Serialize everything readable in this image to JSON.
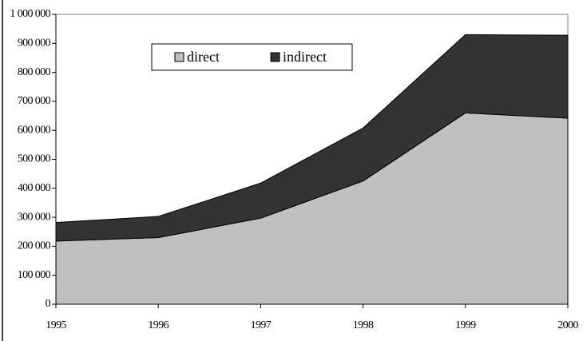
{
  "chart_data": {
    "type": "area",
    "stacked": true,
    "x": [
      1995,
      1996,
      1997,
      1998,
      1999,
      2000
    ],
    "series": [
      {
        "name": "direct",
        "color": "#c0c0c0",
        "values": [
          218000,
          230000,
          297000,
          425000,
          660000,
          642000
        ]
      },
      {
        "name": "indirect",
        "color": "#333333",
        "values": [
          64000,
          73000,
          121000,
          183000,
          270000,
          286000
        ]
      }
    ],
    "xlim": [
      1995,
      2000
    ],
    "xticks": [
      1995,
      1996,
      1997,
      1998,
      1999,
      2000
    ],
    "ylim": [
      0,
      1000000
    ],
    "yticks": [
      0,
      {
        "value": 100000,
        "label": "100 000"
      },
      {
        "value": 200000,
        "label": "200 000"
      },
      {
        "value": 300000,
        "label": "300 000"
      },
      {
        "value": 400000,
        "label": "400 000"
      },
      {
        "value": 500000,
        "label": "500 000"
      },
      {
        "value": 600000,
        "label": "600 000"
      },
      {
        "value": 700000,
        "label": "700 000"
      },
      {
        "value": 800000,
        "label": "800 000"
      },
      {
        "value": 900000,
        "label": "900 000"
      },
      {
        "value": 1000000,
        "label": "1 000 000"
      }
    ],
    "legend": "top"
  }
}
